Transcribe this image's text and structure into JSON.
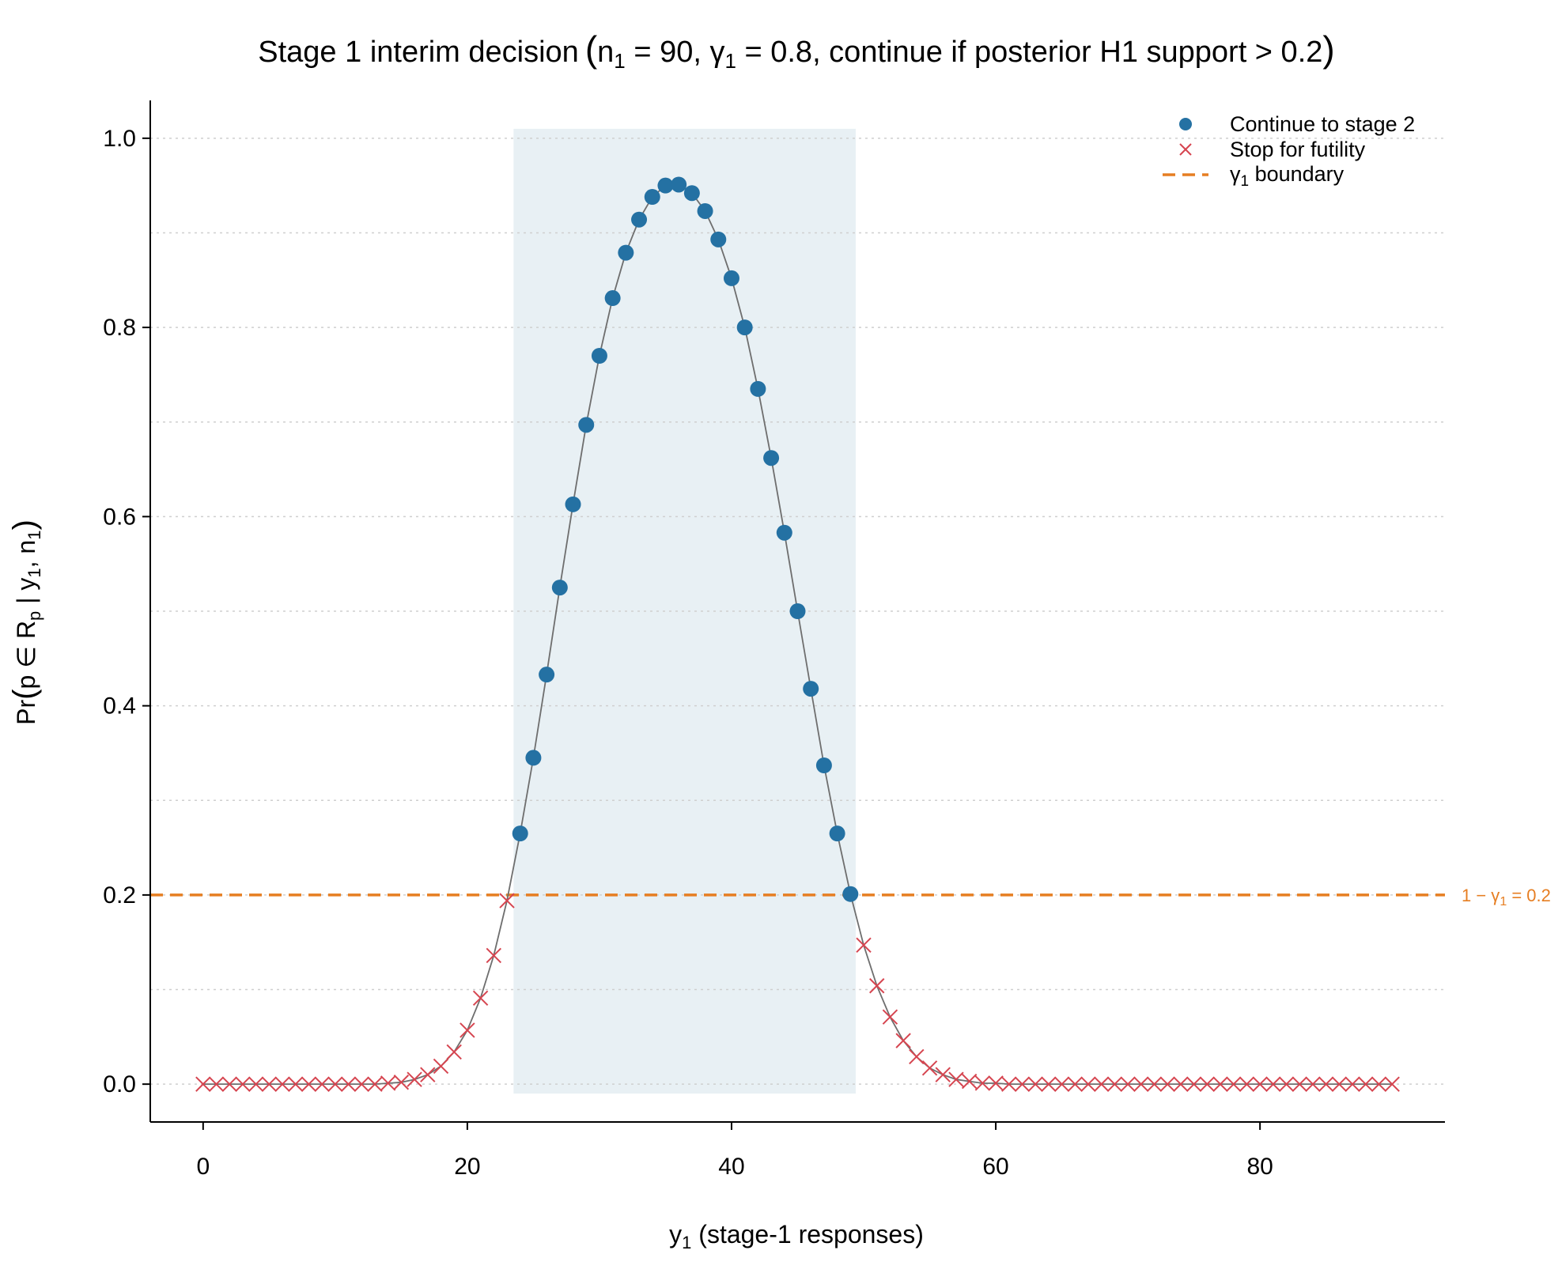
{
  "chart_data": {
    "type": "scatter",
    "title": {
      "prefix": "Stage 1 interim decision",
      "n_symbol": "n",
      "n_sub": "1",
      "n_value": " = 90, ",
      "g_symbol": "γ",
      "g_sub": "1",
      "g_value": " = 0.8, continue if posterior H1 support > 0.2"
    },
    "xlabel": {
      "main": "y",
      "sub": "1",
      "rest": " (stage-1 responses)"
    },
    "ylabel": {
      "a": "Pr",
      "b": "p ∈ R",
      "b_sub": "p",
      "c": " | y",
      "c_sub": "1",
      "d": ", n",
      "d_sub": "1"
    },
    "xlim": [
      -4,
      94
    ],
    "ylim": [
      -0.04,
      1.04
    ],
    "x_ticks": [
      0,
      20,
      40,
      60,
      80
    ],
    "x_tick_labels": [
      "0",
      "20",
      "40",
      "60",
      "80"
    ],
    "y_ticks": [
      0.0,
      0.2,
      0.4,
      0.6,
      0.8,
      1.0
    ],
    "y_tick_labels": [
      "0.0",
      "0.2",
      "0.4",
      "0.6",
      "0.8",
      "1.0"
    ],
    "y_minor_grid": [
      0.1,
      0.3,
      0.5,
      0.7,
      0.9
    ],
    "grid": "horizontal dotted",
    "shaded_region": {
      "x0": 23.5,
      "x1": 49.4,
      "y0": -0.01,
      "y1": 1.01
    },
    "boundary": {
      "y": 0.2,
      "label_main": "1 − γ",
      "label_sub": "1",
      "label_rest": " = 0.2"
    },
    "legend_position": "top-right",
    "series": [
      {
        "name": "Continue to stage 2",
        "marker": "circle",
        "color": "#2471A3",
        "x": [
          24,
          25,
          26,
          27,
          28,
          29,
          30,
          31,
          32,
          33,
          34,
          35,
          36,
          37,
          38,
          39,
          40,
          41,
          42,
          43,
          44,
          45,
          46,
          47,
          48,
          49
        ],
        "y": [
          0.265,
          0.345,
          0.433,
          0.525,
          0.613,
          0.697,
          0.77,
          0.831,
          0.879,
          0.914,
          0.938,
          0.95,
          0.951,
          0.942,
          0.923,
          0.893,
          0.852,
          0.8,
          0.735,
          0.662,
          0.583,
          0.5,
          0.418,
          0.337,
          0.265,
          0.201
        ]
      },
      {
        "name": "Stop for futility",
        "marker": "x",
        "color": "#D64550",
        "x": [
          0,
          1,
          2,
          3,
          4,
          5,
          6,
          7,
          8,
          9,
          10,
          11,
          12,
          13,
          14,
          15,
          16,
          17,
          18,
          19,
          20,
          21,
          22,
          23,
          50,
          51,
          52,
          53,
          54,
          55,
          56,
          57,
          58,
          59,
          60,
          61,
          62,
          63,
          64,
          65,
          66,
          67,
          68,
          69,
          70,
          71,
          72,
          73,
          74,
          75,
          76,
          77,
          78,
          79,
          80,
          81,
          82,
          83,
          84,
          85,
          86,
          87,
          88,
          89,
          90
        ],
        "y": [
          0,
          0,
          0,
          0,
          0,
          0,
          0,
          0,
          0,
          0,
          0,
          0,
          0,
          0,
          0.001,
          0.002,
          0.005,
          0.01,
          0.019,
          0.034,
          0.057,
          0.091,
          0.136,
          0.194,
          0.147,
          0.104,
          0.071,
          0.046,
          0.029,
          0.017,
          0.01,
          0.005,
          0.003,
          0.001,
          0.001,
          0,
          0,
          0,
          0,
          0,
          0,
          0,
          0,
          0,
          0,
          0,
          0,
          0,
          0,
          0,
          0,
          0,
          0,
          0,
          0,
          0,
          0,
          0,
          0,
          0,
          0,
          0,
          0,
          0,
          0
        ]
      },
      {
        "name": "γ",
        "name_sub": "1",
        "name_rest": " boundary",
        "marker": "dashed-line",
        "color": "#E67E22"
      }
    ],
    "colors": {
      "continue": "#2471A3",
      "stop": "#D64550",
      "boundary": "#E67E22",
      "curve": "#6E6E6E",
      "shade": "#E8F0F4",
      "grid": "#CFCFCF"
    }
  }
}
